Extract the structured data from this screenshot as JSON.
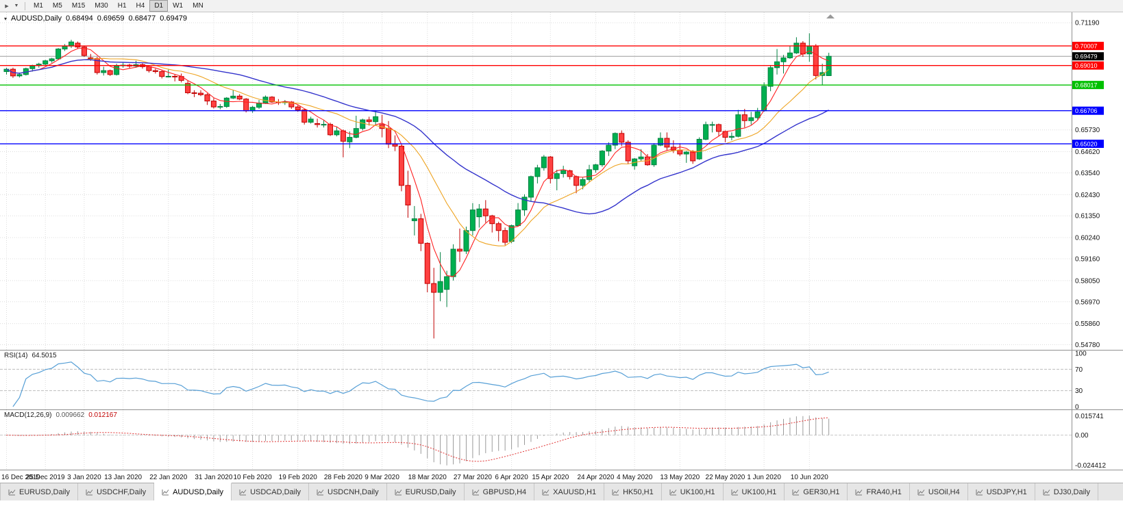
{
  "toolbar": {
    "icons": [
      {
        "name": "auto-scroll-icon",
        "glyph": "▶"
      },
      {
        "name": "chart-shift-icon",
        "glyph": "▼"
      }
    ],
    "timeframes": [
      "M1",
      "M5",
      "M15",
      "M30",
      "H1",
      "H4",
      "D1",
      "W1",
      "MN"
    ],
    "active_timeframe": "D1"
  },
  "chart": {
    "collapse_glyph": "▾",
    "symbol_label": "AUDUSD,Daily",
    "ohlc": {
      "open": "0.68494",
      "high": "0.69659",
      "low": "0.68477",
      "close": "0.69479"
    }
  },
  "indicators": {
    "rsi": {
      "name": "RSI(14)",
      "value": "64.5015",
      "color": "#569fd6",
      "levels": [
        70,
        30
      ],
      "scale_labels": [
        "100",
        "70",
        "30",
        "0"
      ]
    },
    "macd": {
      "name": "MACD(12,26,9)",
      "main_value": "0.009662",
      "signal_value": "0.012167",
      "scale_labels": [
        "0.015741",
        "0.00",
        "-0.024412"
      ],
      "histogram_color": "#9a9a9a",
      "signal_color": "#e03030"
    }
  },
  "chart_data": {
    "type": "candlestick",
    "symbol": "AUDUSD",
    "timeframe": "Daily",
    "price_range": {
      "min": 0.5452,
      "max": 0.7172
    },
    "y_ticks": [
      "0.71190",
      "0.65730",
      "0.64620",
      "0.63540",
      "0.62430",
      "0.61350",
      "0.60240",
      "0.59160",
      "0.58050",
      "0.56970",
      "0.55860",
      "0.54780"
    ],
    "x_labels": [
      {
        "label": "16 Dec 2019",
        "bar": 0
      },
      {
        "label": "25 Dec 2019",
        "bar": 6
      },
      {
        "label": "3 Jan 2020",
        "bar": 12
      },
      {
        "label": "13 Jan 2020",
        "bar": 18
      },
      {
        "label": "22 Jan 2020",
        "bar": 25
      },
      {
        "label": "31 Jan 2020",
        "bar": 32
      },
      {
        "label": "10 Feb 2020",
        "bar": 38
      },
      {
        "label": "19 Feb 2020",
        "bar": 45
      },
      {
        "label": "28 Feb 2020",
        "bar": 52
      },
      {
        "label": "9 Mar 2020",
        "bar": 58
      },
      {
        "label": "18 Mar 2020",
        "bar": 65
      },
      {
        "label": "27 Mar 2020",
        "bar": 72
      },
      {
        "label": "6 Apr 2020",
        "bar": 78
      },
      {
        "label": "15 Apr 2020",
        "bar": 84
      },
      {
        "label": "24 Apr 2020",
        "bar": 91
      },
      {
        "label": "4 May 2020",
        "bar": 97
      },
      {
        "label": "13 May 2020",
        "bar": 104
      },
      {
        "label": "22 May 2020",
        "bar": 111
      },
      {
        "label": "1 Jun 2020",
        "bar": 117
      },
      {
        "label": "10 Jun 2020",
        "bar": 124
      }
    ],
    "hlines": [
      {
        "price": 0.70007,
        "label": "0.70007",
        "color": "#ff0000"
      },
      {
        "price": 0.6901,
        "label": "0.69010",
        "color": "#ff0000"
      },
      {
        "price": 0.68017,
        "label": "0.68017",
        "color": "#00c000"
      },
      {
        "price": 0.66706,
        "label": "0.66706",
        "color": "#0000ff"
      },
      {
        "price": 0.6502,
        "label": "0.65020",
        "color": "#0000ff"
      }
    ],
    "current_price": {
      "value": 0.69479,
      "label": "0.69479"
    },
    "moving_averages": [
      {
        "period": 5,
        "color": "#ff2020",
        "width": 1.1
      },
      {
        "period": 13,
        "color": "#eea320",
        "width": 1.1
      },
      {
        "period": 30,
        "color": "#3333cc",
        "width": 1.4
      }
    ],
    "colors": {
      "up_fill": "#00b050",
      "up_stroke": "#008040",
      "down_fill": "#ff4141",
      "down_stroke": "#c00000"
    },
    "candles": [
      [
        0.687,
        0.689,
        0.6855,
        0.6882
      ],
      [
        0.6882,
        0.689,
        0.6838,
        0.6848
      ],
      [
        0.6848,
        0.6865,
        0.684,
        0.6855
      ],
      [
        0.6855,
        0.689,
        0.685,
        0.6885
      ],
      [
        0.6885,
        0.6905,
        0.687,
        0.69
      ],
      [
        0.69,
        0.6915,
        0.689,
        0.6908
      ],
      [
        0.6908,
        0.693,
        0.69,
        0.6925
      ],
      [
        0.6925,
        0.694,
        0.6915,
        0.6935
      ],
      [
        0.6935,
        0.699,
        0.693,
        0.6985
      ],
      [
        0.6985,
        0.701,
        0.6975,
        0.7
      ],
      [
        0.7,
        0.7032,
        0.699,
        0.7021
      ],
      [
        0.7015,
        0.7023,
        0.6985,
        0.6995
      ],
      [
        0.6995,
        0.7,
        0.6945,
        0.6952
      ],
      [
        0.694,
        0.696,
        0.6925,
        0.6937
      ],
      [
        0.6937,
        0.6945,
        0.6855,
        0.6865
      ],
      [
        0.6865,
        0.6895,
        0.685,
        0.6875
      ],
      [
        0.6875,
        0.688,
        0.6848,
        0.6855
      ],
      [
        0.6855,
        0.691,
        0.685,
        0.69
      ],
      [
        0.69,
        0.6915,
        0.689,
        0.6903
      ],
      [
        0.6903,
        0.691,
        0.6885,
        0.6898
      ],
      [
        0.6898,
        0.6925,
        0.689,
        0.6905
      ],
      [
        0.6905,
        0.6912,
        0.6885,
        0.6895
      ],
      [
        0.6895,
        0.69,
        0.6865,
        0.6875
      ],
      [
        0.6875,
        0.6885,
        0.686,
        0.687
      ],
      [
        0.687,
        0.6878,
        0.6835,
        0.6845
      ],
      [
        0.6845,
        0.688,
        0.684,
        0.6846
      ],
      [
        0.6846,
        0.6855,
        0.682,
        0.6845
      ],
      [
        0.6845,
        0.686,
        0.6815,
        0.6825
      ],
      [
        0.681,
        0.6825,
        0.6755,
        0.6762
      ],
      [
        0.6762,
        0.6775,
        0.674,
        0.676
      ],
      [
        0.676,
        0.6775,
        0.6745,
        0.6752
      ],
      [
        0.6752,
        0.676,
        0.67,
        0.672
      ],
      [
        0.672,
        0.6735,
        0.6682,
        0.669
      ],
      [
        0.669,
        0.6705,
        0.6678,
        0.6692
      ],
      [
        0.6692,
        0.674,
        0.6685,
        0.6735
      ],
      [
        0.6735,
        0.6775,
        0.673,
        0.6745
      ],
      [
        0.6745,
        0.6755,
        0.6725,
        0.673
      ],
      [
        0.673,
        0.6735,
        0.6662,
        0.667
      ],
      [
        0.667,
        0.6695,
        0.666,
        0.6688
      ],
      [
        0.6688,
        0.6725,
        0.668,
        0.671
      ],
      [
        0.671,
        0.6748,
        0.6705,
        0.674
      ],
      [
        0.674,
        0.6745,
        0.671,
        0.6715
      ],
      [
        0.6715,
        0.673,
        0.67,
        0.6712
      ],
      [
        0.6712,
        0.6725,
        0.67,
        0.6715
      ],
      [
        0.6715,
        0.672,
        0.668,
        0.669
      ],
      [
        0.669,
        0.67,
        0.6665,
        0.6675
      ],
      [
        0.6675,
        0.668,
        0.66,
        0.6612
      ],
      [
        0.6612,
        0.664,
        0.6605,
        0.6628
      ],
      [
        0.6605,
        0.663,
        0.6585,
        0.66
      ],
      [
        0.66,
        0.6622,
        0.6585,
        0.6601
      ],
      [
        0.6601,
        0.661,
        0.6542,
        0.6548
      ],
      [
        0.6548,
        0.659,
        0.654,
        0.6568
      ],
      [
        0.6568,
        0.6575,
        0.6433,
        0.6515
      ],
      [
        0.6512,
        0.6565,
        0.648,
        0.6535
      ],
      [
        0.6535,
        0.6645,
        0.653,
        0.658
      ],
      [
        0.658,
        0.663,
        0.657,
        0.6624
      ],
      [
        0.6624,
        0.664,
        0.6595,
        0.6615
      ],
      [
        0.6615,
        0.667,
        0.66,
        0.664
      ],
      [
        0.66,
        0.665,
        0.6535,
        0.658
      ],
      [
        0.658,
        0.6618,
        0.648,
        0.65
      ],
      [
        0.65,
        0.6545,
        0.6465,
        0.649
      ],
      [
        0.649,
        0.6495,
        0.626,
        0.629
      ],
      [
        0.629,
        0.6365,
        0.6125,
        0.619
      ],
      [
        0.611,
        0.6185,
        0.6035,
        0.612
      ],
      [
        0.612,
        0.6145,
        0.5955,
        0.5995
      ],
      [
        0.5995,
        0.6,
        0.5745,
        0.579
      ],
      [
        0.579,
        0.587,
        0.551,
        0.5745
      ],
      [
        0.5745,
        0.595,
        0.57,
        0.58
      ],
      [
        0.576,
        0.5855,
        0.567,
        0.5825
      ],
      [
        0.5825,
        0.599,
        0.5805,
        0.5965
      ],
      [
        0.5965,
        0.607,
        0.59,
        0.5955
      ],
      [
        0.5955,
        0.608,
        0.594,
        0.606
      ],
      [
        0.606,
        0.62,
        0.6035,
        0.6165
      ],
      [
        0.613,
        0.6195,
        0.6075,
        0.617
      ],
      [
        0.617,
        0.6215,
        0.61,
        0.6135
      ],
      [
        0.6135,
        0.614,
        0.605,
        0.6095
      ],
      [
        0.6095,
        0.6105,
        0.6005,
        0.606
      ],
      [
        0.606,
        0.6075,
        0.5985,
        0.6
      ],
      [
        0.6005,
        0.609,
        0.5995,
        0.6085
      ],
      [
        0.6085,
        0.62,
        0.608,
        0.6165
      ],
      [
        0.6165,
        0.6245,
        0.6135,
        0.623
      ],
      [
        0.623,
        0.634,
        0.621,
        0.6335
      ],
      [
        0.6335,
        0.6395,
        0.63,
        0.638
      ],
      [
        0.638,
        0.6445,
        0.6365,
        0.6435
      ],
      [
        0.6435,
        0.644,
        0.63,
        0.6325
      ],
      [
        0.6325,
        0.637,
        0.6265,
        0.635
      ],
      [
        0.635,
        0.639,
        0.633,
        0.6365
      ],
      [
        0.6365,
        0.637,
        0.632,
        0.6335
      ],
      [
        0.6335,
        0.634,
        0.625,
        0.629
      ],
      [
        0.629,
        0.633,
        0.627,
        0.632
      ],
      [
        0.632,
        0.6395,
        0.6305,
        0.637
      ],
      [
        0.637,
        0.64,
        0.6355,
        0.6395
      ],
      [
        0.6395,
        0.647,
        0.6385,
        0.6465
      ],
      [
        0.6465,
        0.651,
        0.644,
        0.6495
      ],
      [
        0.6495,
        0.656,
        0.6475,
        0.6555
      ],
      [
        0.6555,
        0.657,
        0.649,
        0.651
      ],
      [
        0.651,
        0.652,
        0.64,
        0.6415
      ],
      [
        0.639,
        0.643,
        0.637,
        0.6425
      ],
      [
        0.6425,
        0.6475,
        0.6415,
        0.6435
      ],
      [
        0.6435,
        0.645,
        0.639,
        0.6395
      ],
      [
        0.6395,
        0.6505,
        0.6385,
        0.6495
      ],
      [
        0.6495,
        0.656,
        0.649,
        0.653
      ],
      [
        0.653,
        0.656,
        0.647,
        0.6485
      ],
      [
        0.6485,
        0.652,
        0.6455,
        0.647
      ],
      [
        0.647,
        0.6505,
        0.644,
        0.645
      ],
      [
        0.645,
        0.6465,
        0.6405,
        0.646
      ],
      [
        0.646,
        0.647,
        0.64,
        0.6415
      ],
      [
        0.6425,
        0.6535,
        0.642,
        0.6525
      ],
      [
        0.6525,
        0.6615,
        0.652,
        0.66
      ],
      [
        0.66,
        0.6615,
        0.656,
        0.66
      ],
      [
        0.66,
        0.6605,
        0.654,
        0.6565
      ],
      [
        0.6565,
        0.657,
        0.651,
        0.6535
      ],
      [
        0.6535,
        0.656,
        0.652,
        0.654
      ],
      [
        0.654,
        0.6675,
        0.6535,
        0.665
      ],
      [
        0.665,
        0.668,
        0.6585,
        0.662
      ],
      [
        0.662,
        0.6665,
        0.66,
        0.6635
      ],
      [
        0.6635,
        0.6685,
        0.6625,
        0.6665
      ],
      [
        0.667,
        0.6815,
        0.6665,
        0.6795
      ],
      [
        0.6795,
        0.69,
        0.677,
        0.689
      ],
      [
        0.689,
        0.6985,
        0.6855,
        0.692
      ],
      [
        0.692,
        0.6955,
        0.686,
        0.694
      ],
      [
        0.694,
        0.7,
        0.6935,
        0.6965
      ],
      [
        0.6965,
        0.7045,
        0.696,
        0.7015
      ],
      [
        0.7015,
        0.7025,
        0.6945,
        0.696
      ],
      [
        0.696,
        0.7065,
        0.692,
        0.7
      ],
      [
        0.7,
        0.701,
        0.683,
        0.685
      ],
      [
        0.685,
        0.691,
        0.68,
        0.6865
      ],
      [
        0.68494,
        0.69659,
        0.68477,
        0.69479
      ]
    ]
  },
  "tabs": {
    "active_index": 2,
    "items": [
      "EURUSD,Daily",
      "USDCHF,Daily",
      "AUDUSD,Daily",
      "USDCAD,Daily",
      "USDCNH,Daily",
      "EURUSD,Daily",
      "GBPUSD,H4",
      "XAUUSD,H1",
      "HK50,H1",
      "UK100,H1",
      "UK100,H1",
      "GER30,H1",
      "FRA40,H1",
      "USOil,H4",
      "USDJPY,H1",
      "DJ30,Daily"
    ]
  }
}
